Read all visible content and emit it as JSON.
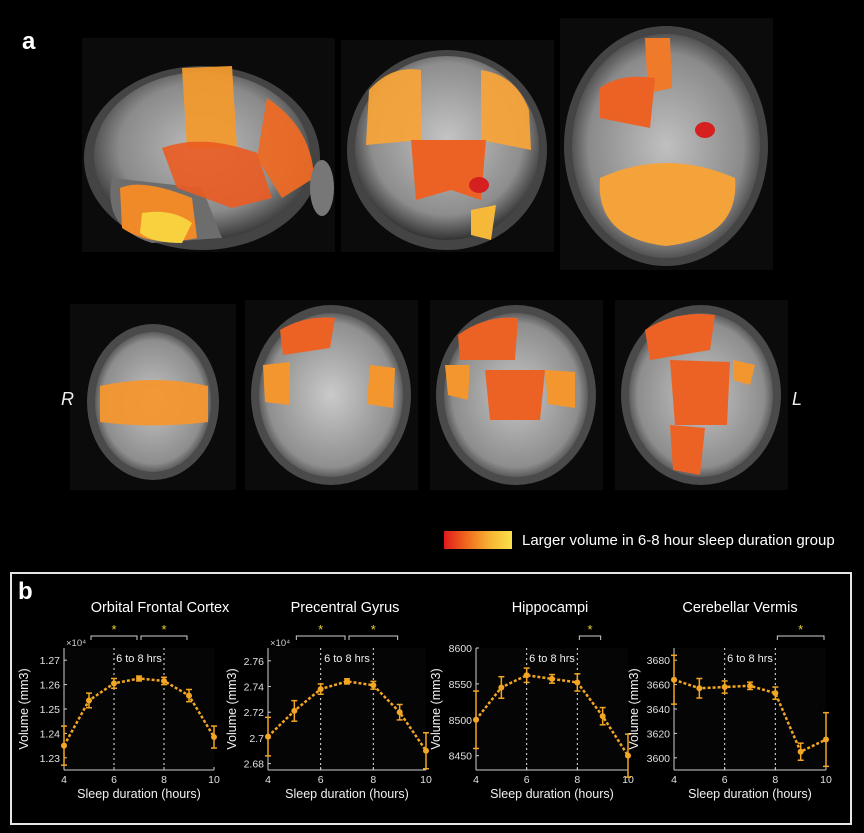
{
  "panel_a": {
    "letter": "a",
    "side_labels": {
      "right": "R",
      "left": "L"
    },
    "legend_text": "Larger volume in 6-8 hour sleep duration group",
    "colors": {
      "low": "#e01b1b",
      "mid": "#f28a24",
      "high": "#f8e04a"
    }
  },
  "panel_b": {
    "letter": "b"
  },
  "annotation_label": "6 to 8 hrs",
  "chart_data": [
    {
      "type": "line",
      "title": "Orbital Frontal Cortex",
      "xlabel": "Sleep duration (hours)",
      "ylabel": "Volume (mm3)",
      "exponent_label": "×10⁴",
      "x": [
        4,
        5,
        6,
        7,
        8,
        9,
        10
      ],
      "y": [
        1.235,
        1.2535,
        1.2605,
        1.2625,
        1.2615,
        1.2555,
        1.2385
      ],
      "yerr": [
        0.008,
        0.003,
        0.002,
        0.001,
        0.0015,
        0.0025,
        0.0045
      ],
      "xlim": [
        4,
        10
      ],
      "ylim": [
        1.225,
        1.275
      ],
      "xticks": [
        "4",
        "6",
        "8",
        "10"
      ],
      "yticks": [
        "1.23",
        "1.24",
        "1.25",
        "1.26",
        "1.27"
      ],
      "yticks_values": [
        1.23,
        1.24,
        1.25,
        1.26,
        1.27
      ],
      "significance": [
        {
          "from": 5,
          "to": 7,
          "mark": "*"
        },
        {
          "from": 7,
          "to": 9,
          "mark": "*"
        }
      ],
      "shaded_range": [
        6,
        8
      ],
      "color": "#f2a623"
    },
    {
      "type": "line",
      "title": "Precentral Gyrus",
      "xlabel": "Sleep duration (hours)",
      "ylabel": "Volume (mm3)",
      "exponent_label": "×10⁴",
      "x": [
        4,
        5,
        6,
        7,
        8,
        9,
        10
      ],
      "y": [
        2.701,
        2.721,
        2.738,
        2.744,
        2.741,
        2.72,
        2.69
      ],
      "yerr": [
        0.015,
        0.008,
        0.004,
        0.002,
        0.003,
        0.006,
        0.014
      ],
      "xlim": [
        4,
        10
      ],
      "ylim": [
        2.675,
        2.77
      ],
      "xticks": [
        "4",
        "6",
        "8",
        "10"
      ],
      "yticks": [
        "2.68",
        "2.7",
        "2.72",
        "2.74",
        "2.76"
      ],
      "yticks_values": [
        2.68,
        2.7,
        2.72,
        2.74,
        2.76
      ],
      "significance": [
        {
          "from": 5,
          "to": 7,
          "mark": "*"
        },
        {
          "from": 7,
          "to": 9,
          "mark": "*"
        }
      ],
      "shaded_range": [
        6,
        8
      ],
      "color": "#f2a623"
    },
    {
      "type": "line",
      "title": "Hippocampi",
      "xlabel": "Sleep duration (hours)",
      "ylabel": "Volume (mm3)",
      "exponent_label": "",
      "x": [
        4,
        5,
        6,
        7,
        8,
        9,
        10
      ],
      "y": [
        8500,
        8545,
        8562,
        8557,
        8552,
        8505,
        8450
      ],
      "yerr": [
        40,
        15,
        10,
        6,
        12,
        12,
        30
      ],
      "xlim": [
        4,
        10
      ],
      "ylim": [
        8430,
        8600
      ],
      "xticks": [
        "4",
        "6",
        "8",
        "10"
      ],
      "yticks": [
        "8450",
        "8500",
        "8550",
        "8600"
      ],
      "yticks_values": [
        8450,
        8500,
        8550,
        8600
      ],
      "significance": [
        {
          "from": 8,
          "to": 9,
          "mark": "*"
        }
      ],
      "shaded_range": [
        6,
        8
      ],
      "color": "#f2a623"
    },
    {
      "type": "line",
      "title": "Cerebellar Vermis",
      "xlabel": "Sleep duration (hours)",
      "ylabel": "Volume (mm3)",
      "exponent_label": "",
      "x": [
        4,
        5,
        6,
        7,
        8,
        9,
        10
      ],
      "y": [
        3664,
        3657,
        3658,
        3659,
        3653,
        3605,
        3615
      ],
      "yerr": [
        20,
        8,
        5,
        3,
        5,
        7,
        22
      ],
      "xlim": [
        4,
        10
      ],
      "ylim": [
        3590,
        3690
      ],
      "xticks": [
        "4",
        "6",
        "8",
        "10"
      ],
      "yticks": [
        "3600",
        "3620",
        "3640",
        "3660",
        "3680"
      ],
      "yticks_values": [
        3600,
        3620,
        3640,
        3660,
        3680
      ],
      "significance": [
        {
          "from": 8,
          "to": 10,
          "mark": "*"
        }
      ],
      "shaded_range": [
        6,
        8
      ],
      "color": "#f2a623"
    }
  ]
}
